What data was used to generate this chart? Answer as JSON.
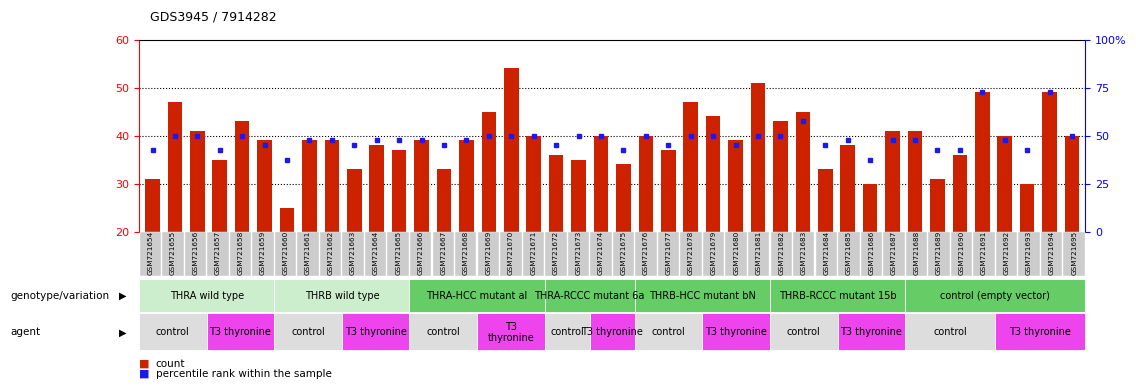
{
  "title": "GDS3945 / 7914282",
  "samples": [
    "GSM721654",
    "GSM721655",
    "GSM721656",
    "GSM721657",
    "GSM721658",
    "GSM721659",
    "GSM721660",
    "GSM721661",
    "GSM721662",
    "GSM721663",
    "GSM721664",
    "GSM721665",
    "GSM721666",
    "GSM721667",
    "GSM721668",
    "GSM721669",
    "GSM721670",
    "GSM721671",
    "GSM721672",
    "GSM721673",
    "GSM721674",
    "GSM721675",
    "GSM721676",
    "GSM721677",
    "GSM721678",
    "GSM721679",
    "GSM721680",
    "GSM721681",
    "GSM721682",
    "GSM721683",
    "GSM721684",
    "GSM721685",
    "GSM721686",
    "GSM721687",
    "GSM721688",
    "GSM721689",
    "GSM721690",
    "GSM721691",
    "GSM721692",
    "GSM721693",
    "GSM721694",
    "GSM721695"
  ],
  "bar_values": [
    31,
    47,
    41,
    35,
    43,
    39,
    25,
    39,
    39,
    33,
    38,
    37,
    39,
    33,
    39,
    45,
    54,
    40,
    36,
    35,
    40,
    34,
    40,
    37,
    47,
    44,
    39,
    51,
    43,
    45,
    33,
    38,
    30,
    41,
    41,
    31,
    36,
    49,
    40,
    30,
    49,
    40
  ],
  "dot_values": [
    37,
    40,
    40,
    37,
    40,
    38,
    35,
    39,
    39,
    38,
    39,
    39,
    39,
    38,
    39,
    40,
    40,
    40,
    38,
    40,
    40,
    37,
    40,
    38,
    40,
    40,
    38,
    40,
    40,
    43,
    38,
    39,
    35,
    39,
    39,
    37,
    37,
    49,
    39,
    37,
    49,
    40
  ],
  "ylim": [
    20,
    60
  ],
  "yticks_left": [
    20,
    30,
    40,
    50,
    60
  ],
  "yticks_right_pos": [
    20,
    30,
    40,
    50,
    60
  ],
  "yticks_right_labels": [
    "0",
    "25",
    "50",
    "75",
    "100%"
  ],
  "bar_color": "#cc2200",
  "dot_color": "#1a1aee",
  "tick_bg_color": "#cccccc",
  "genotype_groups": [
    {
      "label": "THRA wild type",
      "start": 0,
      "end": 5,
      "color": "#cceecc"
    },
    {
      "label": "THRB wild type",
      "start": 6,
      "end": 11,
      "color": "#cceecc"
    },
    {
      "label": "THRA-HCC mutant al",
      "start": 12,
      "end": 17,
      "color": "#66cc66"
    },
    {
      "label": "THRA-RCCC mutant 6a",
      "start": 18,
      "end": 21,
      "color": "#66cc66"
    },
    {
      "label": "THRB-HCC mutant bN",
      "start": 22,
      "end": 27,
      "color": "#66cc66"
    },
    {
      "label": "THRB-RCCC mutant 15b",
      "start": 28,
      "end": 33,
      "color": "#66cc66"
    },
    {
      "label": "control (empty vector)",
      "start": 34,
      "end": 41,
      "color": "#66cc66"
    }
  ],
  "agent_groups": [
    {
      "label": "control",
      "start": 0,
      "end": 2,
      "color": "#dddddd"
    },
    {
      "label": "T3 thyronine",
      "start": 3,
      "end": 5,
      "color": "#ee44ee"
    },
    {
      "label": "control",
      "start": 6,
      "end": 8,
      "color": "#dddddd"
    },
    {
      "label": "T3 thyronine",
      "start": 9,
      "end": 11,
      "color": "#ee44ee"
    },
    {
      "label": "control",
      "start": 12,
      "end": 14,
      "color": "#dddddd"
    },
    {
      "label": "T3\nthyronine",
      "start": 15,
      "end": 17,
      "color": "#ee44ee"
    },
    {
      "label": "control",
      "start": 18,
      "end": 19,
      "color": "#dddddd"
    },
    {
      "label": "T3 thyronine",
      "start": 20,
      "end": 21,
      "color": "#ee44ee"
    },
    {
      "label": "control",
      "start": 22,
      "end": 24,
      "color": "#dddddd"
    },
    {
      "label": "T3 thyronine",
      "start": 25,
      "end": 27,
      "color": "#ee44ee"
    },
    {
      "label": "control",
      "start": 28,
      "end": 30,
      "color": "#dddddd"
    },
    {
      "label": "T3 thyronine",
      "start": 31,
      "end": 33,
      "color": "#ee44ee"
    },
    {
      "label": "control",
      "start": 34,
      "end": 37,
      "color": "#dddddd"
    },
    {
      "label": "T3 thyronine",
      "start": 38,
      "end": 41,
      "color": "#ee44ee"
    }
  ],
  "label_genotype": "genotype/variation",
  "label_agent": "agent",
  "legend_count": "count",
  "legend_percentile": "percentile rank within the sample",
  "bg_color": "#ffffff"
}
